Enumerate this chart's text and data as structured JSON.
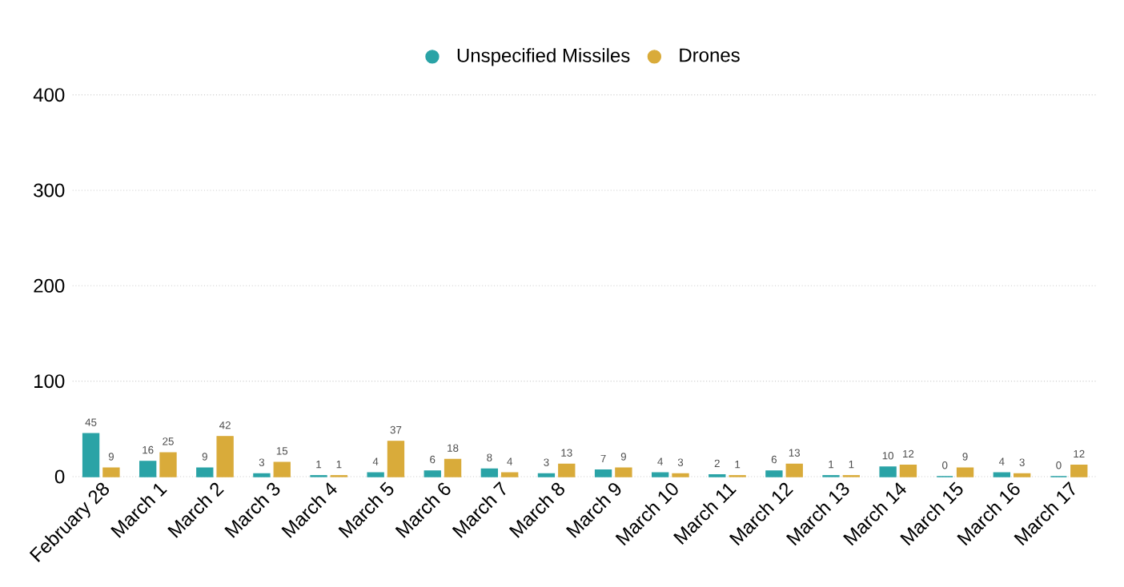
{
  "chart_data": {
    "type": "bar",
    "categories": [
      "February 28",
      "March 1",
      "March 2",
      "March 3",
      "March 4",
      "March 5",
      "March 6",
      "March 7",
      "March 8",
      "March 9",
      "March 10",
      "March 11",
      "March 12",
      "March 13",
      "March 14",
      "March 15",
      "March 16",
      "March 17"
    ],
    "series": [
      {
        "name": "Unspecified Missiles",
        "color": "#2aa3a6",
        "values": [
          45,
          16,
          9,
          3,
          1,
          4,
          6,
          8,
          3,
          7,
          4,
          2,
          6,
          1,
          10,
          0,
          4,
          0
        ]
      },
      {
        "name": "Drones",
        "color": "#d9ab3a",
        "values": [
          9,
          25,
          42,
          15,
          1,
          37,
          18,
          4,
          13,
          9,
          3,
          1,
          13,
          1,
          12,
          9,
          3,
          12
        ]
      }
    ],
    "ylim": [
      0,
      400
    ],
    "yticks": [
      0,
      100,
      200,
      300,
      400
    ],
    "grid": "y",
    "legend": "top",
    "data_labels": true
  }
}
